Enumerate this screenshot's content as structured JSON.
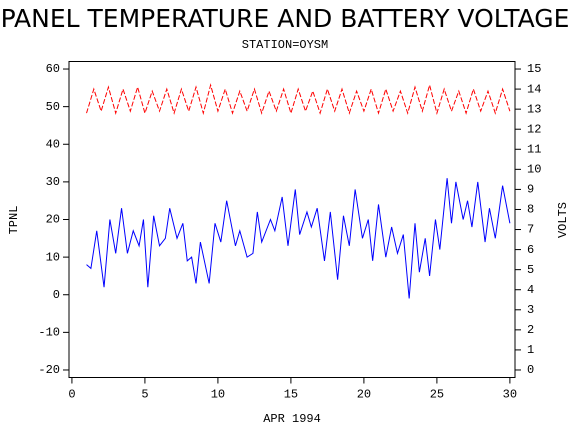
{
  "chart_data": {
    "type": "line",
    "title": "PANEL TEMPERATURE AND BATTERY VOLTAGE",
    "subtitle": "STATION=OYSM",
    "x_label": "APR 1994",
    "y_label": "TPNL",
    "y2_label": "VOLTS",
    "xlim": [
      -0.2,
      30.35
    ],
    "xticks": [
      0,
      5,
      10,
      15,
      20,
      25,
      30
    ],
    "ylim": [
      -22,
      62
    ],
    "yticks": [
      -20,
      -10,
      0,
      10,
      20,
      30,
      40,
      50,
      60
    ],
    "y2lim": [
      -0.375,
      15.375
    ],
    "y2ticks": [
      0,
      1,
      2,
      3,
      4,
      5,
      6,
      7,
      8,
      9,
      10,
      11,
      12,
      13,
      14,
      15
    ],
    "series": [
      {
        "color": "#0000ff",
        "linestyle": "solid",
        "x": [
          1,
          1.3,
          1.7,
          2.2,
          2.6,
          3,
          3.4,
          3.8,
          4.2,
          4.6,
          4.9,
          5.2,
          5.6,
          6,
          6.4,
          6.7,
          7.2,
          7.6,
          7.9,
          8.2,
          8.5,
          8.8,
          9.4,
          9.8,
          10.2,
          10.6,
          11.2,
          11.5,
          12,
          12.4,
          12.7,
          13,
          13.6,
          13.9,
          14.4,
          14.8,
          15.3,
          15.6,
          16.1,
          16.4,
          16.8,
          17.3,
          17.7,
          18.2,
          18.6,
          19,
          19.4,
          19.9,
          20.3,
          20.6,
          21,
          21.5,
          21.9,
          22.3,
          22.7,
          23.1,
          23.5,
          23.8,
          24.2,
          24.5,
          24.9,
          25.2,
          25.7,
          26,
          26.3,
          26.8,
          27.1,
          27.4,
          27.8,
          28.3,
          28.6,
          29,
          29.5,
          30
        ],
        "values": [
          8,
          7,
          17,
          2,
          20,
          11,
          23,
          11,
          17,
          13,
          20,
          2,
          21,
          13,
          15,
          23,
          15,
          19,
          9,
          10,
          3,
          14,
          3,
          19,
          14,
          25,
          13,
          17,
          10,
          11,
          22,
          14,
          20,
          17,
          26,
          13,
          28,
          16,
          22,
          18,
          23,
          9,
          22,
          4,
          21,
          13,
          28,
          15,
          20,
          9,
          24,
          10,
          18,
          11,
          16,
          -1,
          19,
          6,
          15,
          5,
          20,
          12,
          31,
          19,
          30,
          20,
          25,
          18,
          30,
          14,
          23,
          15,
          29,
          19
        ]
      },
      {
        "color": "#ff0000",
        "linestyle": "dashed",
        "axis": "y2",
        "x": [
          1,
          1.5,
          2,
          2.5,
          3,
          3.5,
          4,
          4.5,
          5,
          5.5,
          6,
          6.5,
          7,
          7.5,
          8,
          8.5,
          9,
          9.5,
          10,
          10.5,
          11,
          11.5,
          12,
          12.5,
          13,
          13.5,
          14,
          14.5,
          15,
          15.5,
          16,
          16.5,
          17,
          17.5,
          18,
          18.5,
          19,
          19.5,
          20,
          20.5,
          21,
          21.5,
          22,
          22.5,
          23,
          23.5,
          24,
          24.5,
          25,
          25.5,
          26,
          26.5,
          27,
          27.5,
          28,
          28.5,
          29,
          29.5,
          30
        ],
        "values": [
          12.8,
          14.0,
          12.9,
          14.1,
          12.8,
          14.0,
          12.9,
          14.1,
          12.8,
          13.9,
          12.9,
          14.0,
          12.8,
          14.0,
          12.9,
          14.1,
          12.8,
          14.2,
          12.9,
          14.0,
          12.8,
          13.9,
          12.9,
          14.0,
          12.8,
          13.9,
          12.9,
          14.0,
          12.8,
          14.0,
          12.9,
          13.9,
          12.8,
          14.0,
          12.9,
          14.0,
          12.8,
          13.9,
          12.9,
          14.0,
          12.8,
          14.0,
          12.9,
          13.9,
          12.8,
          14.1,
          12.9,
          14.2,
          12.8,
          14.0,
          12.9,
          13.9,
          12.8,
          14.0,
          12.9,
          13.9,
          12.8,
          14.0,
          12.9
        ]
      }
    ]
  }
}
